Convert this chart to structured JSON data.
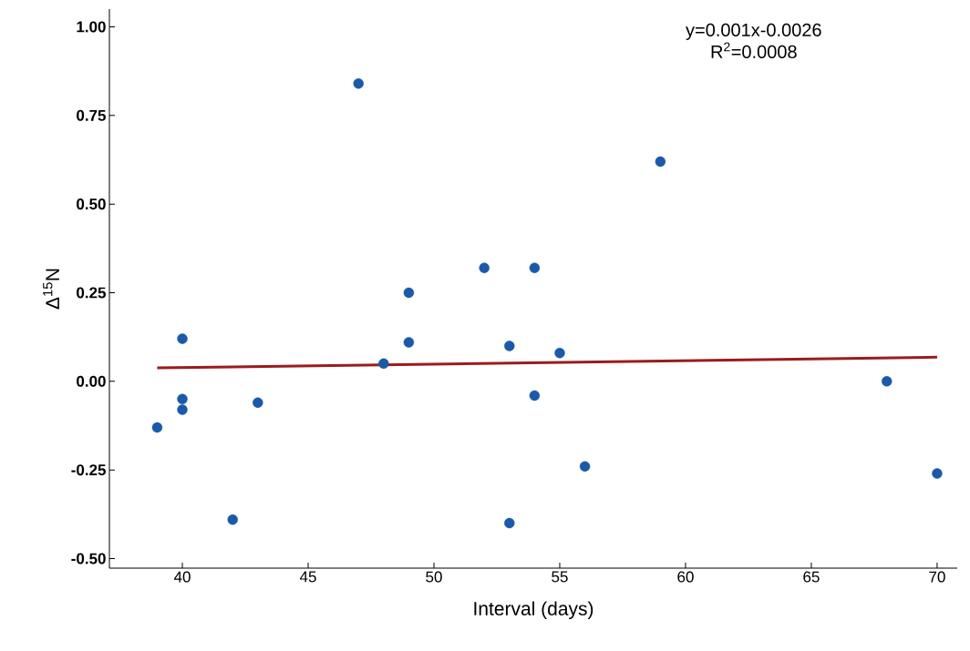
{
  "chart_data": {
    "type": "scatter",
    "xlabel": "Interval (days)",
    "ylabel": "Δ$^{15}$N",
    "xlim": [
      37.1,
      70.8
    ],
    "ylim": [
      -0.527,
      1.05
    ],
    "xticks": [
      40,
      45,
      50,
      55,
      60,
      65,
      70
    ],
    "yticks": [
      {
        "value": -0.5,
        "label": "-0.50"
      },
      {
        "value": -0.25,
        "label": "-0.25"
      },
      {
        "value": 0,
        "label": "0.00"
      },
      {
        "value": 0.25,
        "label": "0.25"
      },
      {
        "value": 0.5,
        "label": "0.50"
      },
      {
        "value": 0.75,
        "label": "0.75"
      },
      {
        "value": 1,
        "label": "1.00"
      }
    ],
    "grid": false,
    "marker": "circle",
    "annotations": [
      "y=0.001x-0.0026",
      "R$^{2}$=0.0008"
    ],
    "series": [
      {
        "type": "scatter",
        "color": "#1a5aa8",
        "x": [
          39,
          40,
          40,
          40,
          42,
          43,
          47,
          48,
          49,
          49,
          52,
          53,
          53,
          54,
          54,
          55,
          56,
          59,
          68,
          70
        ],
        "values": [
          -0.13,
          0.12,
          -0.05,
          -0.08,
          -0.39,
          -0.06,
          0.84,
          0.05,
          0.25,
          0.11,
          0.32,
          0.1,
          -0.4,
          0.32,
          -0.04,
          0.08,
          -0.24,
          0.62,
          0.0,
          -0.26
        ]
      },
      {
        "type": "line",
        "color": "#9b1c1c",
        "line_style": "solid",
        "marker": "none",
        "x": [
          39,
          70
        ],
        "values": [
          0.038,
          0.068
        ]
      }
    ]
  }
}
